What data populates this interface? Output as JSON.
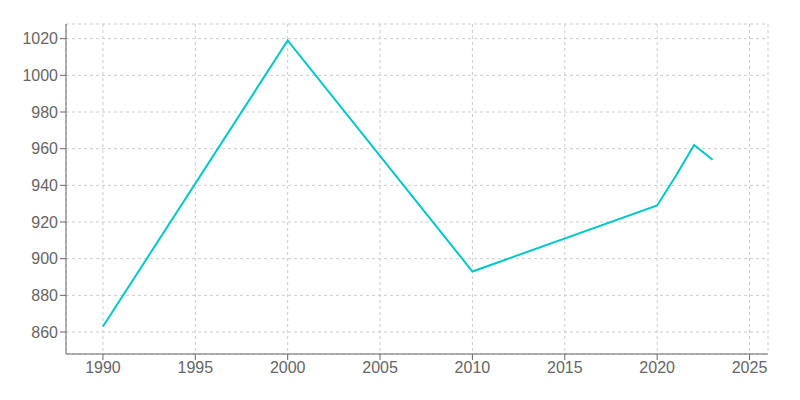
{
  "chart_data": {
    "type": "line",
    "x": [
      1990,
      2000,
      2010,
      2020,
      2021,
      2022,
      2023
    ],
    "values": [
      863,
      1019,
      893,
      929,
      945,
      962,
      954
    ],
    "color": "#00C8C8",
    "xlim": [
      1988,
      2026
    ],
    "ylim": [
      848,
      1028
    ],
    "xticks": [
      1990,
      1995,
      2000,
      2005,
      2010,
      2015,
      2020,
      2025
    ],
    "yticks": [
      860,
      880,
      900,
      920,
      940,
      960,
      980,
      1000,
      1020
    ],
    "grid": true
  }
}
